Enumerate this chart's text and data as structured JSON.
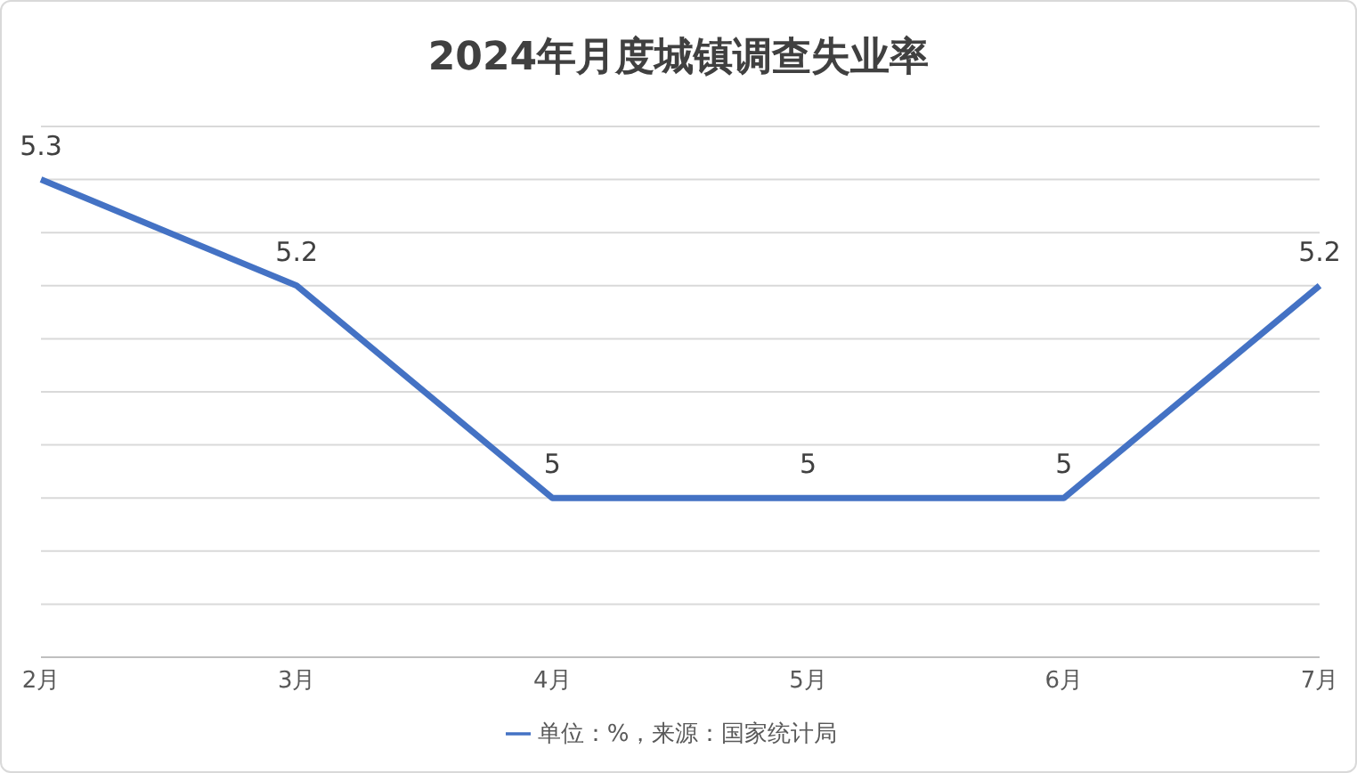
{
  "chart_data": {
    "type": "line",
    "title": "2024年月度城镇调查失业率",
    "categories": [
      "2月",
      "3月",
      "4月",
      "5月",
      "6月",
      "7月"
    ],
    "series": [
      {
        "name": "单位：%，来源：国家统计局",
        "color": "#4472c4",
        "values": [
          5.3,
          5.2,
          5,
          5,
          5,
          5.2
        ]
      }
    ],
    "ylim": [
      4.85,
      5.35
    ],
    "yticks": [
      {
        "value": 4.85,
        "label": null
      },
      {
        "value": 4.9,
        "label": null
      },
      {
        "value": 4.95,
        "label": null
      },
      {
        "value": 5,
        "label": null
      },
      {
        "value": 5.05,
        "label": null
      },
      {
        "value": 5.1,
        "label": null
      },
      {
        "value": 5.15,
        "label": null
      },
      {
        "value": 5.2,
        "label": null
      },
      {
        "value": 5.25,
        "label": null
      },
      {
        "value": 5.3,
        "label": null
      },
      {
        "value": 5.35,
        "label": null
      }
    ],
    "tick_labels": "x",
    "grid": "y",
    "data_labels": true,
    "legend": "bottom",
    "marker": "none",
    "line_style": "solid"
  }
}
